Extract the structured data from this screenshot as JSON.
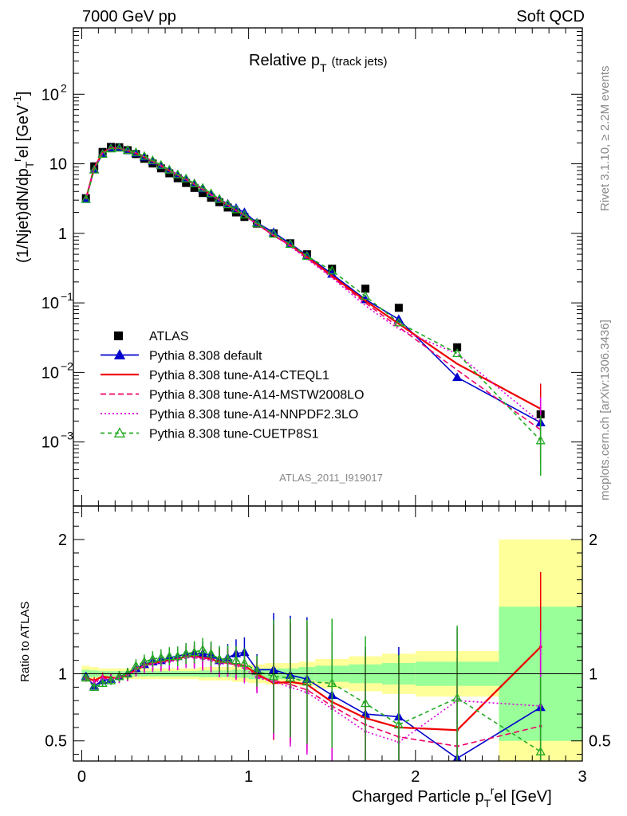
{
  "header": {
    "left": "7000 GeV pp",
    "right": "Soft QCD"
  },
  "side": {
    "rivet": "Rivet 3.1.10, ≥ 2.2M events",
    "mcplots": "mcplots.cern.ch [arXiv:1306.3436]"
  },
  "top_panel": {
    "title_main": "Relative p",
    "title_sub": "T",
    "title_extra": "(track jets)",
    "ylabel": "(1/Njet)dN/dp",
    "ylabel_sub": "T",
    "ylabel_sup": "r",
    "ylabel_tail": "el [GeV",
    "ylabel_tail_sup": "-1",
    "ylabel_end": "]",
    "watermark": "ATLAS_2011_I919017",
    "yticks": [
      {
        "value": 0.001,
        "base": "10",
        "exp": "−3"
      },
      {
        "value": 0.01,
        "base": "10",
        "exp": "−2"
      },
      {
        "value": 0.1,
        "base": "10",
        "exp": "−1"
      },
      {
        "value": 1,
        "base": "1",
        "exp": ""
      },
      {
        "value": 10,
        "base": "10",
        "exp": ""
      },
      {
        "value": 100,
        "base": "10",
        "exp": "2"
      }
    ]
  },
  "bottom_panel": {
    "ylabel": "Ratio to ATLAS",
    "yticks": [
      "0.5",
      "1",
      "2"
    ]
  },
  "xaxis": {
    "label_main": "Charged Particle p",
    "label_sub": "T",
    "label_sup": "r",
    "label_tail": "el [GeV]",
    "ticks": [
      "0",
      "1",
      "2",
      "3"
    ]
  },
  "legend": [
    {
      "name": "ATLAS",
      "color": "#000000",
      "style": "marker-square"
    },
    {
      "name": "Pythia 8.308 default",
      "color": "#0000cc",
      "style": "solid-triangle"
    },
    {
      "name": "Pythia 8.308 tune-A14-CTEQL1",
      "color": "#ee0000",
      "style": "solid"
    },
    {
      "name": "Pythia 8.308 tune-A14-MSTW2008LO",
      "color": "#ee0066",
      "style": "dashed"
    },
    {
      "name": "Pythia 8.308 tune-A14-NNPDF2.3LO",
      "color": "#dd00dd",
      "style": "dotted"
    },
    {
      "name": "Pythia 8.308 tune-CUETP8S1",
      "color": "#22aa22",
      "style": "dashed-open-triangle"
    }
  ],
  "chart_data": {
    "type": "line",
    "x": [
      0.025,
      0.075,
      0.125,
      0.175,
      0.225,
      0.275,
      0.325,
      0.375,
      0.425,
      0.475,
      0.525,
      0.575,
      0.625,
      0.675,
      0.725,
      0.775,
      0.825,
      0.875,
      0.925,
      0.975,
      1.05,
      1.15,
      1.25,
      1.35,
      1.5,
      1.7,
      1.9,
      2.25,
      2.75
    ],
    "x_bins": [
      [
        0,
        0.05
      ],
      [
        0.05,
        0.1
      ],
      [
        0.1,
        0.15
      ],
      [
        0.15,
        0.2
      ],
      [
        0.2,
        0.25
      ],
      [
        0.25,
        0.3
      ],
      [
        0.3,
        0.35
      ],
      [
        0.35,
        0.4
      ],
      [
        0.4,
        0.45
      ],
      [
        0.45,
        0.5
      ],
      [
        0.5,
        0.55
      ],
      [
        0.55,
        0.6
      ],
      [
        0.6,
        0.65
      ],
      [
        0.65,
        0.7
      ],
      [
        0.7,
        0.75
      ],
      [
        0.75,
        0.8
      ],
      [
        0.8,
        0.85
      ],
      [
        0.85,
        0.9
      ],
      [
        0.9,
        0.95
      ],
      [
        0.95,
        1.0
      ],
      [
        1.0,
        1.1
      ],
      [
        1.1,
        1.2
      ],
      [
        1.2,
        1.3
      ],
      [
        1.3,
        1.4
      ],
      [
        1.4,
        1.6
      ],
      [
        1.6,
        1.8
      ],
      [
        1.8,
        2.0
      ],
      [
        2.0,
        2.5
      ],
      [
        2.5,
        3.0
      ]
    ],
    "xlim": [
      -0.05,
      3.0
    ],
    "ylim_top": [
      0.00012,
      900
    ],
    "ylog_top": true,
    "ylim_ratio": [
      0.35,
      2.25
    ],
    "series": [
      {
        "name": "ATLAS",
        "values": [
          3.2,
          9.2,
          14.8,
          17.5,
          17.3,
          15.7,
          13.8,
          11.8,
          10.1,
          8.6,
          7.3,
          6.2,
          5.3,
          4.5,
          3.8,
          3.25,
          2.8,
          2.35,
          2.0,
          1.72,
          1.38,
          1.0,
          0.72,
          0.5,
          0.31,
          0.16,
          0.085,
          0.023,
          0.0025
        ]
      },
      {
        "name": "Pythia 8.308 default",
        "values": [
          3.1,
          8.3,
          14.0,
          16.8,
          17.0,
          15.7,
          14.3,
          12.6,
          11.0,
          9.5,
          8.2,
          7.0,
          6.1,
          5.2,
          4.4,
          3.7,
          3.1,
          2.65,
          2.3,
          2.0,
          1.42,
          1.03,
          0.71,
          0.48,
          0.26,
          0.112,
          0.058,
          0.0085,
          0.0019
        ],
        "ratio": [
          0.98,
          0.91,
          0.95,
          0.96,
          0.98,
          1.0,
          1.04,
          1.07,
          1.09,
          1.1,
          1.12,
          1.13,
          1.15,
          1.15,
          1.15,
          1.14,
          1.1,
          1.12,
          1.15,
          1.16,
          1.03,
          1.03,
          0.99,
          0.96,
          0.84,
          0.7,
          0.68,
          0.37,
          0.75
        ]
      },
      {
        "name": "Pythia 8.308 tune-A14-CTEQL1",
        "values": [
          3.1,
          8.8,
          14.5,
          16.9,
          16.8,
          15.5,
          14.2,
          12.5,
          10.9,
          9.4,
          8.0,
          6.9,
          6.0,
          5.1,
          4.3,
          3.6,
          3.05,
          2.55,
          2.15,
          1.83,
          1.38,
          0.93,
          0.68,
          0.46,
          0.245,
          0.107,
          0.05,
          0.0133,
          0.003
        ],
        "ratio": [
          0.97,
          0.95,
          0.98,
          0.97,
          0.97,
          0.99,
          1.03,
          1.06,
          1.08,
          1.09,
          1.1,
          1.11,
          1.13,
          1.13,
          1.12,
          1.11,
          1.09,
          1.08,
          1.07,
          1.06,
          1.0,
          0.93,
          0.94,
          0.92,
          0.79,
          0.67,
          0.6,
          0.58,
          1.2
        ]
      },
      {
        "name": "Pythia 8.308 tune-A14-MSTW2008LO",
        "values": [
          3.1,
          8.7,
          14.4,
          16.8,
          16.9,
          15.6,
          14.3,
          12.6,
          10.9,
          9.4,
          8.0,
          6.9,
          6.0,
          5.1,
          4.3,
          3.6,
          3.03,
          2.55,
          2.15,
          1.82,
          1.35,
          0.95,
          0.66,
          0.44,
          0.235,
          0.1,
          0.045,
          0.0108,
          0.0015
        ],
        "ratio": [
          0.97,
          0.94,
          0.97,
          0.96,
          0.98,
          0.99,
          1.04,
          1.07,
          1.08,
          1.09,
          1.1,
          1.11,
          1.13,
          1.13,
          1.12,
          1.11,
          1.08,
          1.09,
          1.07,
          1.06,
          0.98,
          0.95,
          0.92,
          0.88,
          0.76,
          0.62,
          0.53,
          0.46,
          0.61
        ]
      },
      {
        "name": "Pythia 8.308 tune-A14-NNPDF2.3LO",
        "values": [
          3.1,
          8.6,
          14.3,
          16.7,
          16.8,
          15.6,
          14.3,
          12.6,
          10.9,
          9.4,
          8.0,
          6.9,
          6.0,
          5.1,
          4.3,
          3.6,
          3.02,
          2.55,
          2.14,
          1.8,
          1.34,
          0.94,
          0.65,
          0.43,
          0.23,
          0.091,
          0.042,
          0.0185,
          0.0019
        ],
        "ratio": [
          0.96,
          0.93,
          0.96,
          0.96,
          0.97,
          0.99,
          1.03,
          1.06,
          1.07,
          1.08,
          1.09,
          1.1,
          1.12,
          1.12,
          1.11,
          1.1,
          1.07,
          1.08,
          1.06,
          1.04,
          0.97,
          0.94,
          0.9,
          0.86,
          0.74,
          0.57,
          0.49,
          0.8,
          0.76
        ]
      },
      {
        "name": "Pythia 8.308 tune-CUETP8S1",
        "values": [
          3.1,
          8.2,
          13.8,
          16.5,
          16.9,
          15.7,
          14.6,
          12.9,
          11.2,
          9.6,
          8.2,
          7.0,
          6.1,
          5.2,
          4.5,
          3.75,
          3.12,
          2.6,
          2.2,
          1.85,
          1.4,
          0.98,
          0.7,
          0.47,
          0.29,
          0.125,
          0.052,
          0.0188,
          0.00105
        ],
        "ratio": [
          0.97,
          0.9,
          0.93,
          0.95,
          0.98,
          1.0,
          1.06,
          1.09,
          1.11,
          1.12,
          1.13,
          1.13,
          1.15,
          1.16,
          1.18,
          1.15,
          1.11,
          1.11,
          1.1,
          1.08,
          1.02,
          0.98,
          0.97,
          0.94,
          0.93,
          0.78,
          0.62,
          0.82,
          0.42
        ]
      }
    ],
    "band_inner": [
      0.03,
      0.025,
      0.02,
      0.02,
      0.02,
      0.02,
      0.02,
      0.02,
      0.02,
      0.02,
      0.02,
      0.02,
      0.02,
      0.02,
      0.025,
      0.025,
      0.025,
      0.025,
      0.03,
      0.03,
      0.04,
      0.04,
      0.04,
      0.05,
      0.06,
      0.07,
      0.08,
      0.09,
      0.5
    ],
    "band_outer": [
      0.06,
      0.05,
      0.04,
      0.04,
      0.04,
      0.04,
      0.04,
      0.04,
      0.04,
      0.04,
      0.04,
      0.04,
      0.04,
      0.04,
      0.05,
      0.05,
      0.05,
      0.05,
      0.06,
      0.06,
      0.07,
      0.08,
      0.08,
      0.09,
      0.11,
      0.13,
      0.15,
      0.17,
      1.0
    ]
  }
}
